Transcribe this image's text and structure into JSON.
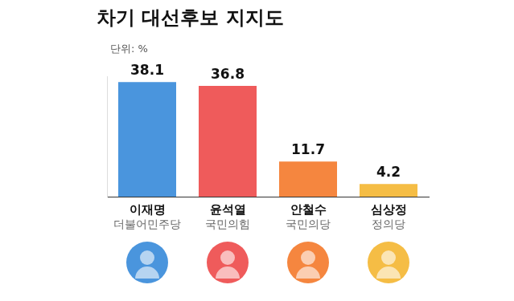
{
  "chart_data": {
    "type": "bar",
    "title": "차기 대선후보 지지도",
    "subtitle": "단위: %",
    "categories": [
      "이재명",
      "윤석열",
      "안철수",
      "심상정"
    ],
    "parties": [
      "더불어민주당",
      "국민의힘",
      "국민의당",
      "정의당"
    ],
    "values": [
      38.1,
      36.8,
      11.7,
      4.2
    ],
    "colors": [
      "#4a95dd",
      "#ef5b5b",
      "#f5863f",
      "#f5bd45"
    ],
    "ylim": [
      0,
      40
    ],
    "grid": false,
    "data_labels": true,
    "tick_labels": "x"
  }
}
